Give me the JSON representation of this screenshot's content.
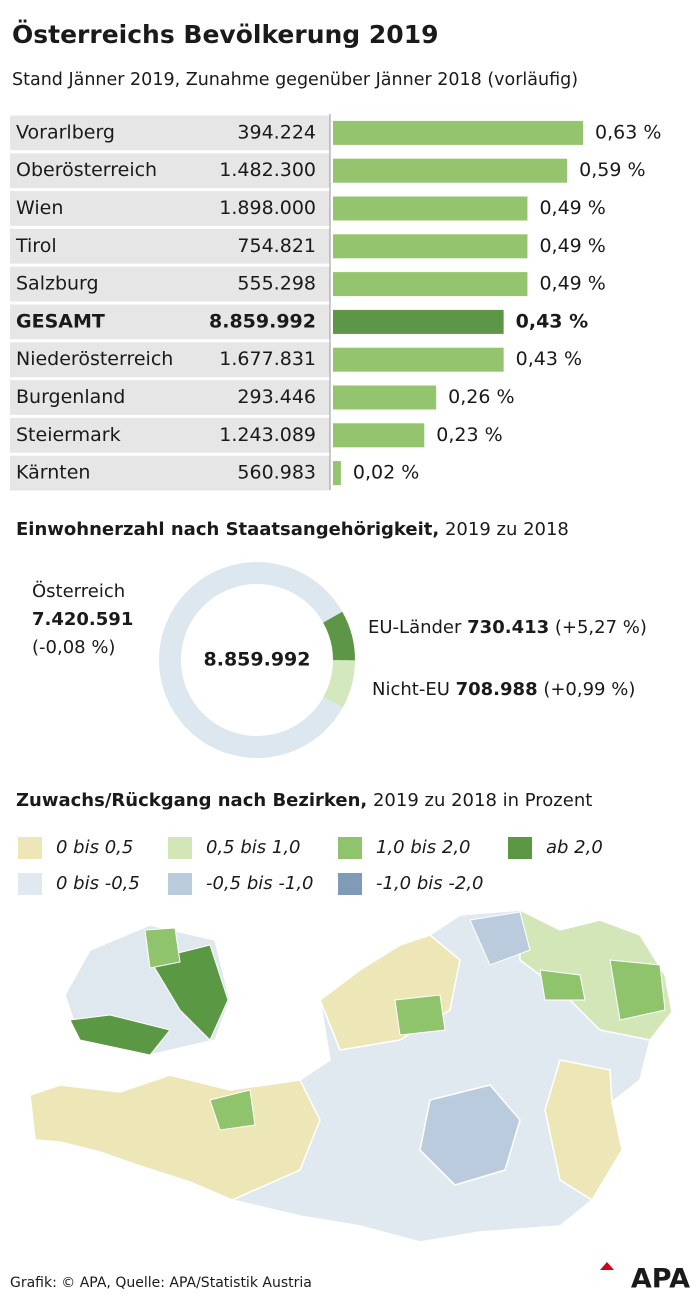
{
  "title": "Österreichs Bevölkerung 2019",
  "subtitle": "Stand Jänner 2019, Zunahme gegenüber Jänner 2018 (vorläufig)",
  "chart_data": [
    {
      "type": "bar",
      "categories": [
        "Vorarlberg",
        "Oberösterreich",
        "Wien",
        "Tirol",
        "Salzburg",
        "GESAMT",
        "Niederösterreich",
        "Burgenland",
        "Steiermark",
        "Kärnten"
      ],
      "populations": [
        "394.224",
        "1.482.300",
        "1.898.000",
        "754.821",
        "555.298",
        "8.859.992",
        "1.677.831",
        "293.446",
        "1.243.089",
        "560.983"
      ],
      "values": [
        0.63,
        0.59,
        0.49,
        0.49,
        0.49,
        0.43,
        0.43,
        0.26,
        0.23,
        0.02
      ],
      "value_labels": [
        "0,63 %",
        "0,59 %",
        "0,49 %",
        "0,49 %",
        "0,49 %",
        "0,43 %",
        "0,43 %",
        "0,26 %",
        "0,23 %",
        "0,02 %"
      ],
      "color": "#95c46f",
      "highlight_index": 5,
      "highlight_color": "#5d9646"
    },
    {
      "type": "pie",
      "title": "Einwohnerzahl nach Staatsangehörigkeit,",
      "subtitle": "2019 zu 2018",
      "center_label": "8.859.992",
      "categories": [
        "Österreich",
        "EU-Länder",
        "Nicht-EU"
      ],
      "values": [
        7420591,
        730413,
        708988
      ],
      "value_labels": [
        "7.420.591",
        "730.413",
        "708.988"
      ],
      "changes": [
        "(-0,08 %)",
        "(+5,27 %)",
        "(+0,99 %)"
      ],
      "colors": [
        "#dde7ef",
        "#5d9646",
        "#d3e8bd"
      ],
      "start_angle": 119
    },
    {
      "type": "map",
      "title": "Zuwachs/Rückgang nach Bezirken,",
      "subtitle": "2019 zu 2018 in Prozent",
      "legend": [
        {
          "label": "0 bis 0,5",
          "color": "#ede7b8"
        },
        {
          "label": "0,5 bis 1,0",
          "color": "#d3e6b7"
        },
        {
          "label": "1,0 bis 2,0",
          "color": "#8fc46c"
        },
        {
          "label": "ab 2,0",
          "color": "#5a9843"
        },
        {
          "label": "0 bis -0,5",
          "color": "#e1e9f0"
        },
        {
          "label": "-0,5 bis -1,0",
          "color": "#b9cbdc"
        },
        {
          "label": "-1,0 bis -2,0",
          "color": "#7f9bb8"
        }
      ]
    }
  ],
  "footer": {
    "source": "Grafik: © APA, Quelle: APA/Statistik Austria",
    "logo": "APA"
  }
}
